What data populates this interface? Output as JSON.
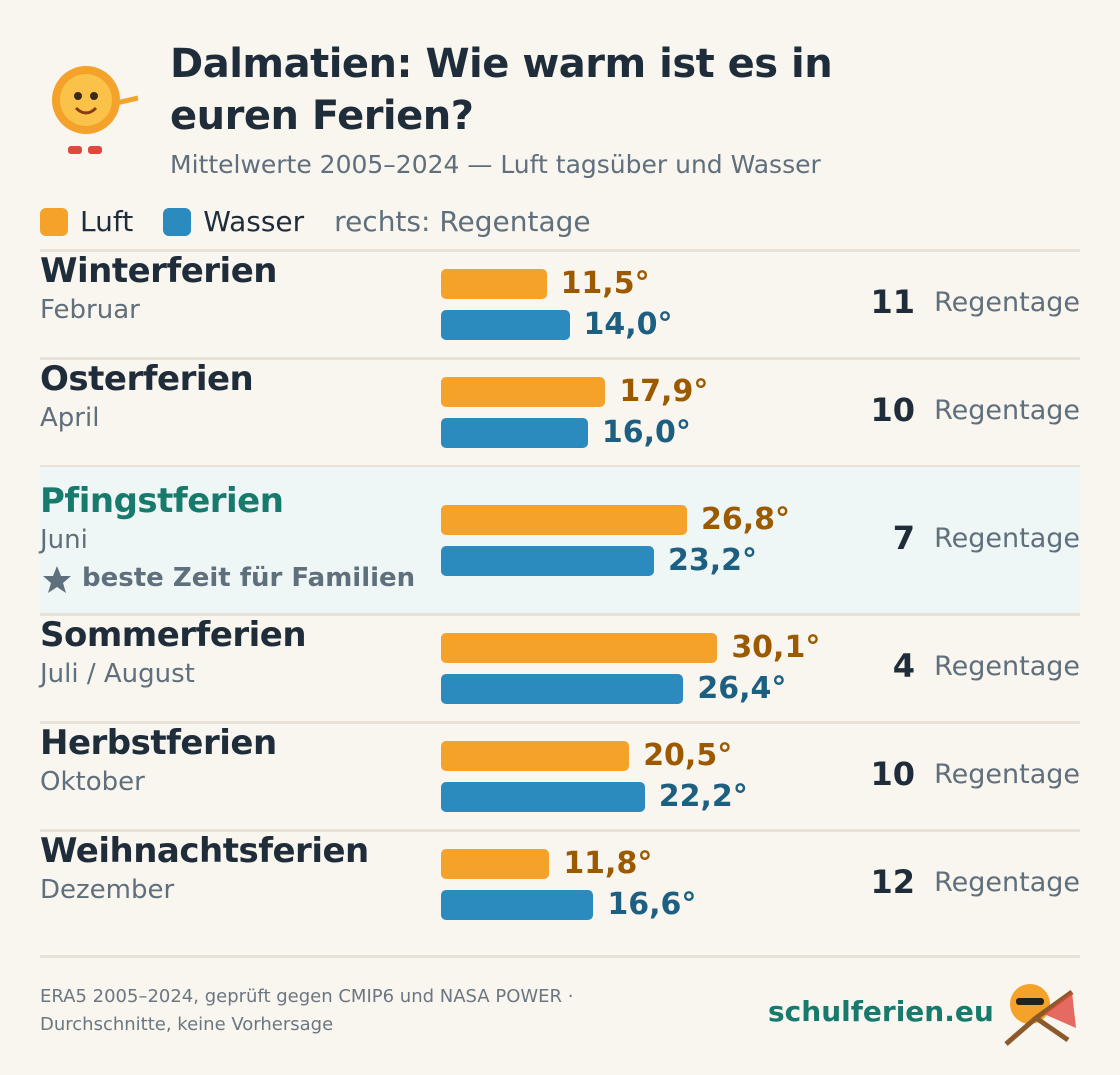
{
  "header": {
    "title": "Dalmatien: Wie warm ist es in euren Ferien?",
    "subtitle": "Mittelwerte 2005–2024 — Luft tagsüber und Wasser"
  },
  "chart_data": {
    "type": "bar",
    "orientation": "horizontal",
    "categories": [
      "Winterferien",
      "Osterferien",
      "Pfingstferien",
      "Sommerferien",
      "Herbstferien",
      "Weihnachtsferien"
    ],
    "sublabels": [
      "Februar",
      "April",
      "Juni",
      "Juli / August",
      "Oktober",
      "Dezember"
    ],
    "notes": [
      null,
      null,
      "beste Zeit für Familien",
      null,
      null,
      null
    ],
    "series": [
      {
        "name": "Luft",
        "color": "#f4a22a",
        "label_color": "#9b5a00",
        "values": [
          11.5,
          17.9,
          26.8,
          30.1,
          20.5,
          11.8
        ],
        "value_labels": [
          "11,5°",
          "17,9°",
          "26,8°",
          "30,1°",
          "20,5°",
          "11,8°"
        ]
      },
      {
        "name": "Wasser",
        "color": "#2b8bbf",
        "label_color": "#1d5f80",
        "values": [
          14.0,
          16.0,
          23.2,
          26.4,
          22.2,
          16.6
        ],
        "value_labels": [
          "14,0°",
          "16,0°",
          "23,2°",
          "26,4°",
          "22,2°",
          "16,6°"
        ]
      }
    ],
    "rain_note": "rechts: Regentage",
    "rain_days": [
      11,
      10,
      7,
      4,
      10,
      12
    ],
    "rain_label": "Regentage"
  },
  "footer": {
    "source_line1": "ERA5 2005–2024, geprüft gegen CMIP6 und NASA POWER ·",
    "source_line2": "Durchschnitte, keine Vorhersage",
    "brand": "schulferien.eu"
  }
}
